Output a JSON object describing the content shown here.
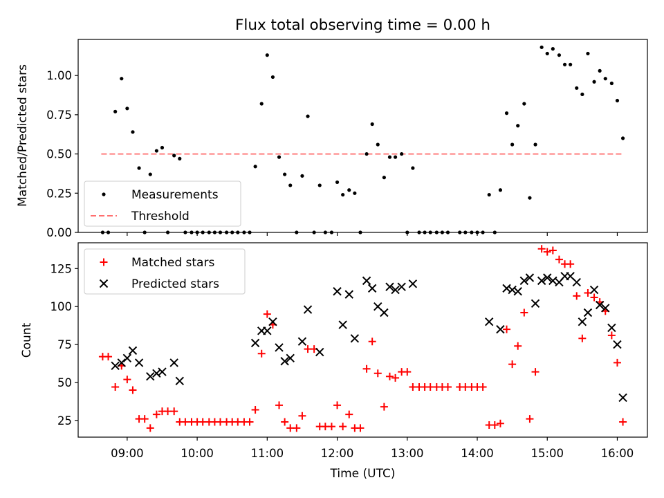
{
  "figure": {
    "title": "Flux total observing time = 0.00 h"
  },
  "chart_data": [
    {
      "type": "scatter",
      "ylabel": "Matched/Predicted stars",
      "ylim": [
        0,
        1.23
      ],
      "yticks": [
        0.0,
        0.25,
        0.5,
        0.75,
        1.0
      ],
      "ytick_labels": [
        "0.00",
        "0.25",
        "0.50",
        "0.75",
        "1.00"
      ],
      "xlim": [
        8.3,
        16.43
      ],
      "xticks": [
        9,
        10,
        11,
        12,
        13,
        14,
        15,
        16
      ],
      "xtick_labels": [
        "09:00",
        "10:00",
        "11:00",
        "12:00",
        "13:00",
        "14:00",
        "15:00",
        "16:00"
      ],
      "show_xtick_labels": false,
      "grid": false,
      "legend_position": "lower-left",
      "legend": [
        {
          "label": "Measurements",
          "marker": "dot",
          "color": "#000000"
        },
        {
          "label": "Threshold",
          "marker": "dashed-line",
          "color": "#ff6f6f"
        }
      ],
      "threshold": {
        "y": 0.5,
        "x_range": [
          8.63,
          16.08
        ],
        "color": "#ff7f7f",
        "style": "dashed"
      },
      "series": [
        {
          "name": "Measurements",
          "marker": "dot",
          "color": "#000000",
          "x": [
            8.65,
            8.73,
            8.83,
            8.92,
            9.0,
            9.08,
            9.17,
            9.25,
            9.33,
            9.42,
            9.5,
            9.58,
            9.67,
            9.75,
            9.83,
            9.92,
            10.0,
            10.08,
            10.17,
            10.25,
            10.33,
            10.42,
            10.5,
            10.58,
            10.67,
            10.75,
            10.83,
            10.92,
            11.0,
            11.08,
            11.17,
            11.25,
            11.33,
            11.42,
            11.5,
            11.58,
            11.67,
            11.75,
            11.83,
            11.92,
            12.0,
            12.08,
            12.17,
            12.25,
            12.33,
            12.42,
            12.5,
            12.58,
            12.67,
            12.75,
            12.83,
            12.92,
            13.0,
            13.08,
            13.17,
            13.25,
            13.33,
            13.42,
            13.5,
            13.58,
            13.75,
            13.83,
            13.92,
            14.0,
            14.08,
            14.17,
            14.25,
            14.33,
            14.42,
            14.5,
            14.58,
            14.67,
            14.75,
            14.83,
            14.92,
            15.0,
            15.08,
            15.17,
            15.25,
            15.33,
            15.42,
            15.5,
            15.58,
            15.67,
            15.75,
            15.83,
            15.92,
            16.0,
            16.08
          ],
          "y": [
            0.0,
            0.0,
            0.77,
            0.98,
            0.79,
            0.64,
            0.41,
            0.0,
            0.37,
            0.52,
            0.54,
            0.0,
            0.49,
            0.47,
            0.0,
            0.0,
            0.0,
            0.0,
            0.0,
            0.0,
            0.0,
            0.0,
            0.0,
            0.0,
            0.0,
            0.0,
            0.42,
            0.82,
            1.13,
            0.99,
            0.48,
            0.37,
            0.3,
            0.0,
            0.36,
            0.74,
            0.0,
            0.3,
            0.0,
            0.0,
            0.32,
            0.24,
            0.27,
            0.25,
            0.0,
            0.5,
            0.69,
            0.56,
            0.35,
            0.48,
            0.48,
            0.5,
            0.0,
            0.41,
            0.0,
            0.0,
            0.0,
            0.0,
            0.0,
            0.0,
            0.0,
            0.0,
            0.0,
            0.0,
            0.0,
            0.24,
            0.0,
            0.27,
            0.76,
            0.56,
            0.68,
            0.82,
            0.22,
            0.56,
            1.18,
            1.14,
            1.17,
            1.13,
            1.07,
            1.07,
            0.92,
            0.88,
            1.14,
            0.96,
            1.03,
            0.98,
            0.95,
            0.84,
            0.6
          ]
        }
      ]
    },
    {
      "type": "scatter",
      "xlabel": "Time (UTC)",
      "ylabel": "Count",
      "ylim": [
        14,
        142
      ],
      "yticks": [
        25,
        50,
        75,
        100,
        125
      ],
      "ytick_labels": [
        "25",
        "50",
        "75",
        "100",
        "125"
      ],
      "xlim": [
        8.3,
        16.43
      ],
      "xticks": [
        9,
        10,
        11,
        12,
        13,
        14,
        15,
        16
      ],
      "xtick_labels": [
        "09:00",
        "10:00",
        "11:00",
        "12:00",
        "13:00",
        "14:00",
        "15:00",
        "16:00"
      ],
      "show_xtick_labels": true,
      "grid": false,
      "legend_position": "upper-left",
      "legend": [
        {
          "label": "Matched stars",
          "marker": "plus",
          "color": "#ff0000"
        },
        {
          "label": "Predicted stars",
          "marker": "x",
          "color": "#000000"
        }
      ],
      "series": [
        {
          "name": "Matched stars",
          "marker": "plus",
          "color": "#ff0000",
          "x": [
            8.65,
            8.73,
            8.83,
            8.92,
            9.0,
            9.08,
            9.17,
            9.25,
            9.33,
            9.42,
            9.5,
            9.58,
            9.67,
            9.75,
            9.83,
            9.92,
            10.0,
            10.08,
            10.17,
            10.25,
            10.33,
            10.42,
            10.5,
            10.58,
            10.67,
            10.75,
            10.83,
            10.92,
            11.0,
            11.08,
            11.17,
            11.25,
            11.33,
            11.42,
            11.5,
            11.58,
            11.67,
            11.75,
            11.83,
            11.92,
            12.0,
            12.08,
            12.17,
            12.25,
            12.33,
            12.42,
            12.5,
            12.58,
            12.67,
            12.75,
            12.83,
            12.92,
            13.0,
            13.08,
            13.17,
            13.25,
            13.33,
            13.42,
            13.5,
            13.58,
            13.75,
            13.83,
            13.92,
            14.0,
            14.08,
            14.17,
            14.25,
            14.33,
            14.42,
            14.5,
            14.58,
            14.67,
            14.75,
            14.83,
            14.92,
            15.0,
            15.08,
            15.17,
            15.25,
            15.33,
            15.42,
            15.5,
            15.58,
            15.67,
            15.75,
            15.83,
            15.92,
            16.0,
            16.08
          ],
          "y": [
            67,
            67,
            47,
            61,
            52,
            45,
            26,
            26,
            20,
            29,
            31,
            31,
            31,
            24,
            24,
            24,
            24,
            24,
            24,
            24,
            24,
            24,
            24,
            24,
            24,
            24,
            32,
            69,
            95,
            88,
            35,
            24,
            20,
            20,
            28,
            72,
            72,
            21,
            21,
            21,
            35,
            21,
            29,
            20,
            20,
            59,
            77,
            56,
            34,
            54,
            53,
            57,
            57,
            47,
            47,
            47,
            47,
            47,
            47,
            47,
            47,
            47,
            47,
            47,
            47,
            22,
            22,
            23,
            85,
            62,
            74,
            96,
            26,
            57,
            138,
            136,
            137,
            131,
            128,
            128,
            107,
            79,
            109,
            106,
            103,
            97,
            81,
            63,
            24
          ]
        },
        {
          "name": "Predicted stars",
          "marker": "x",
          "color": "#000000",
          "x": [
            8.83,
            8.92,
            9.0,
            9.08,
            9.17,
            9.33,
            9.42,
            9.5,
            9.67,
            9.75,
            10.83,
            10.92,
            11.0,
            11.08,
            11.17,
            11.25,
            11.33,
            11.5,
            11.58,
            11.75,
            12.0,
            12.08,
            12.17,
            12.25,
            12.42,
            12.5,
            12.58,
            12.67,
            12.75,
            12.83,
            12.92,
            13.08,
            14.17,
            14.33,
            14.42,
            14.5,
            14.58,
            14.67,
            14.75,
            14.83,
            14.92,
            15.0,
            15.08,
            15.17,
            15.25,
            15.33,
            15.42,
            15.5,
            15.58,
            15.67,
            15.75,
            15.83,
            15.92,
            16.0,
            16.08
          ],
          "y": [
            61,
            63,
            66,
            71,
            63,
            54,
            56,
            57,
            63,
            51,
            76,
            84,
            84,
            90,
            73,
            64,
            66,
            77,
            98,
            70,
            110,
            88,
            108,
            79,
            117,
            112,
            100,
            96,
            113,
            111,
            113,
            115,
            90,
            85,
            112,
            111,
            110,
            117,
            119,
            102,
            117,
            119,
            117,
            116,
            120,
            120,
            116,
            90,
            96,
            111,
            101,
            99,
            86,
            75,
            40
          ]
        }
      ]
    }
  ]
}
